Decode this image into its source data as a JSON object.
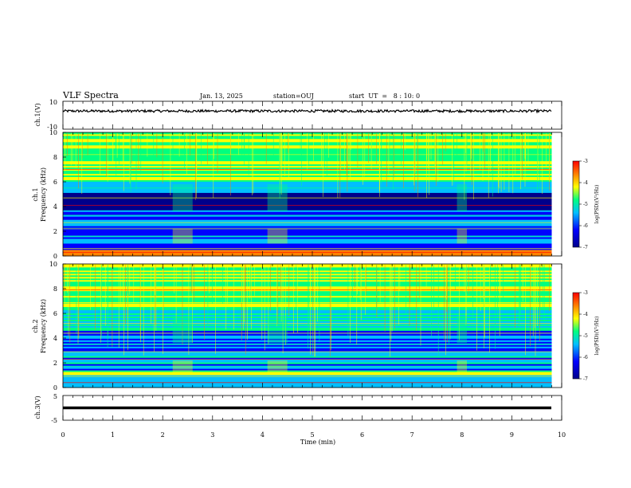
{
  "header": {
    "title": "VLF Spectra",
    "date": "Jan. 13, 2025",
    "station": "station=OUJ",
    "start": "start  UT  =   8 : 10: 0"
  },
  "chart_data": [
    {
      "name": "ch1-waveform",
      "type": "line",
      "ylabel": "ch.1(V)",
      "ylim": [
        -10,
        10
      ],
      "yticks": [
        "10",
        "-10"
      ],
      "xlim": [
        0,
        10
      ],
      "baseline": 3,
      "noise_amplitude": 0.9
    },
    {
      "name": "ch1-spectrogram",
      "type": "heatmap",
      "ylabel_lines": [
        "ch.1",
        "Frequency (kHz)"
      ],
      "ylim": [
        0,
        10
      ],
      "yticks": [
        "0",
        "2",
        "4",
        "6",
        "8",
        "10"
      ],
      "xlim": [
        0,
        10
      ],
      "data_extent_min": 9.8,
      "colorbar": {
        "label": "log(PSD)(V²/Hz)",
        "range": [
          -7,
          -3
        ],
        "ticks": [
          "-3",
          "-4",
          "-5",
          "-6",
          "-7"
        ]
      }
    },
    {
      "name": "ch2-spectrogram",
      "type": "heatmap",
      "ylabel_lines": [
        "ch.2",
        "Frequency (kHz)"
      ],
      "ylim": [
        0,
        10
      ],
      "yticks": [
        "0",
        "2",
        "4",
        "6",
        "8",
        "10"
      ],
      "xlim": [
        0,
        10
      ],
      "data_extent_min": 9.8,
      "colorbar": {
        "label": "log(PSD)(V²/Hz)",
        "range": [
          -7,
          -3
        ],
        "ticks": [
          "-3",
          "-4",
          "-5",
          "-6",
          "-7"
        ]
      }
    },
    {
      "name": "ch3-waveform",
      "type": "line",
      "ylabel": "ch.3(V)",
      "ylim": [
        -5,
        5
      ],
      "yticks": [
        "5",
        "0",
        "-5"
      ],
      "xlim": [
        0,
        10
      ],
      "baseline": 0,
      "noise_amplitude": 0
    }
  ],
  "xaxis": {
    "label": "Time (min)",
    "ticks": [
      "0",
      "1",
      "2",
      "3",
      "4",
      "5",
      "6",
      "7",
      "8",
      "9",
      "10"
    ]
  },
  "colors": {
    "scale": [
      "#00008b",
      "#0000ff",
      "#00bfff",
      "#00ff7f",
      "#ffff00",
      "#ff8000",
      "#ff0000"
    ]
  }
}
